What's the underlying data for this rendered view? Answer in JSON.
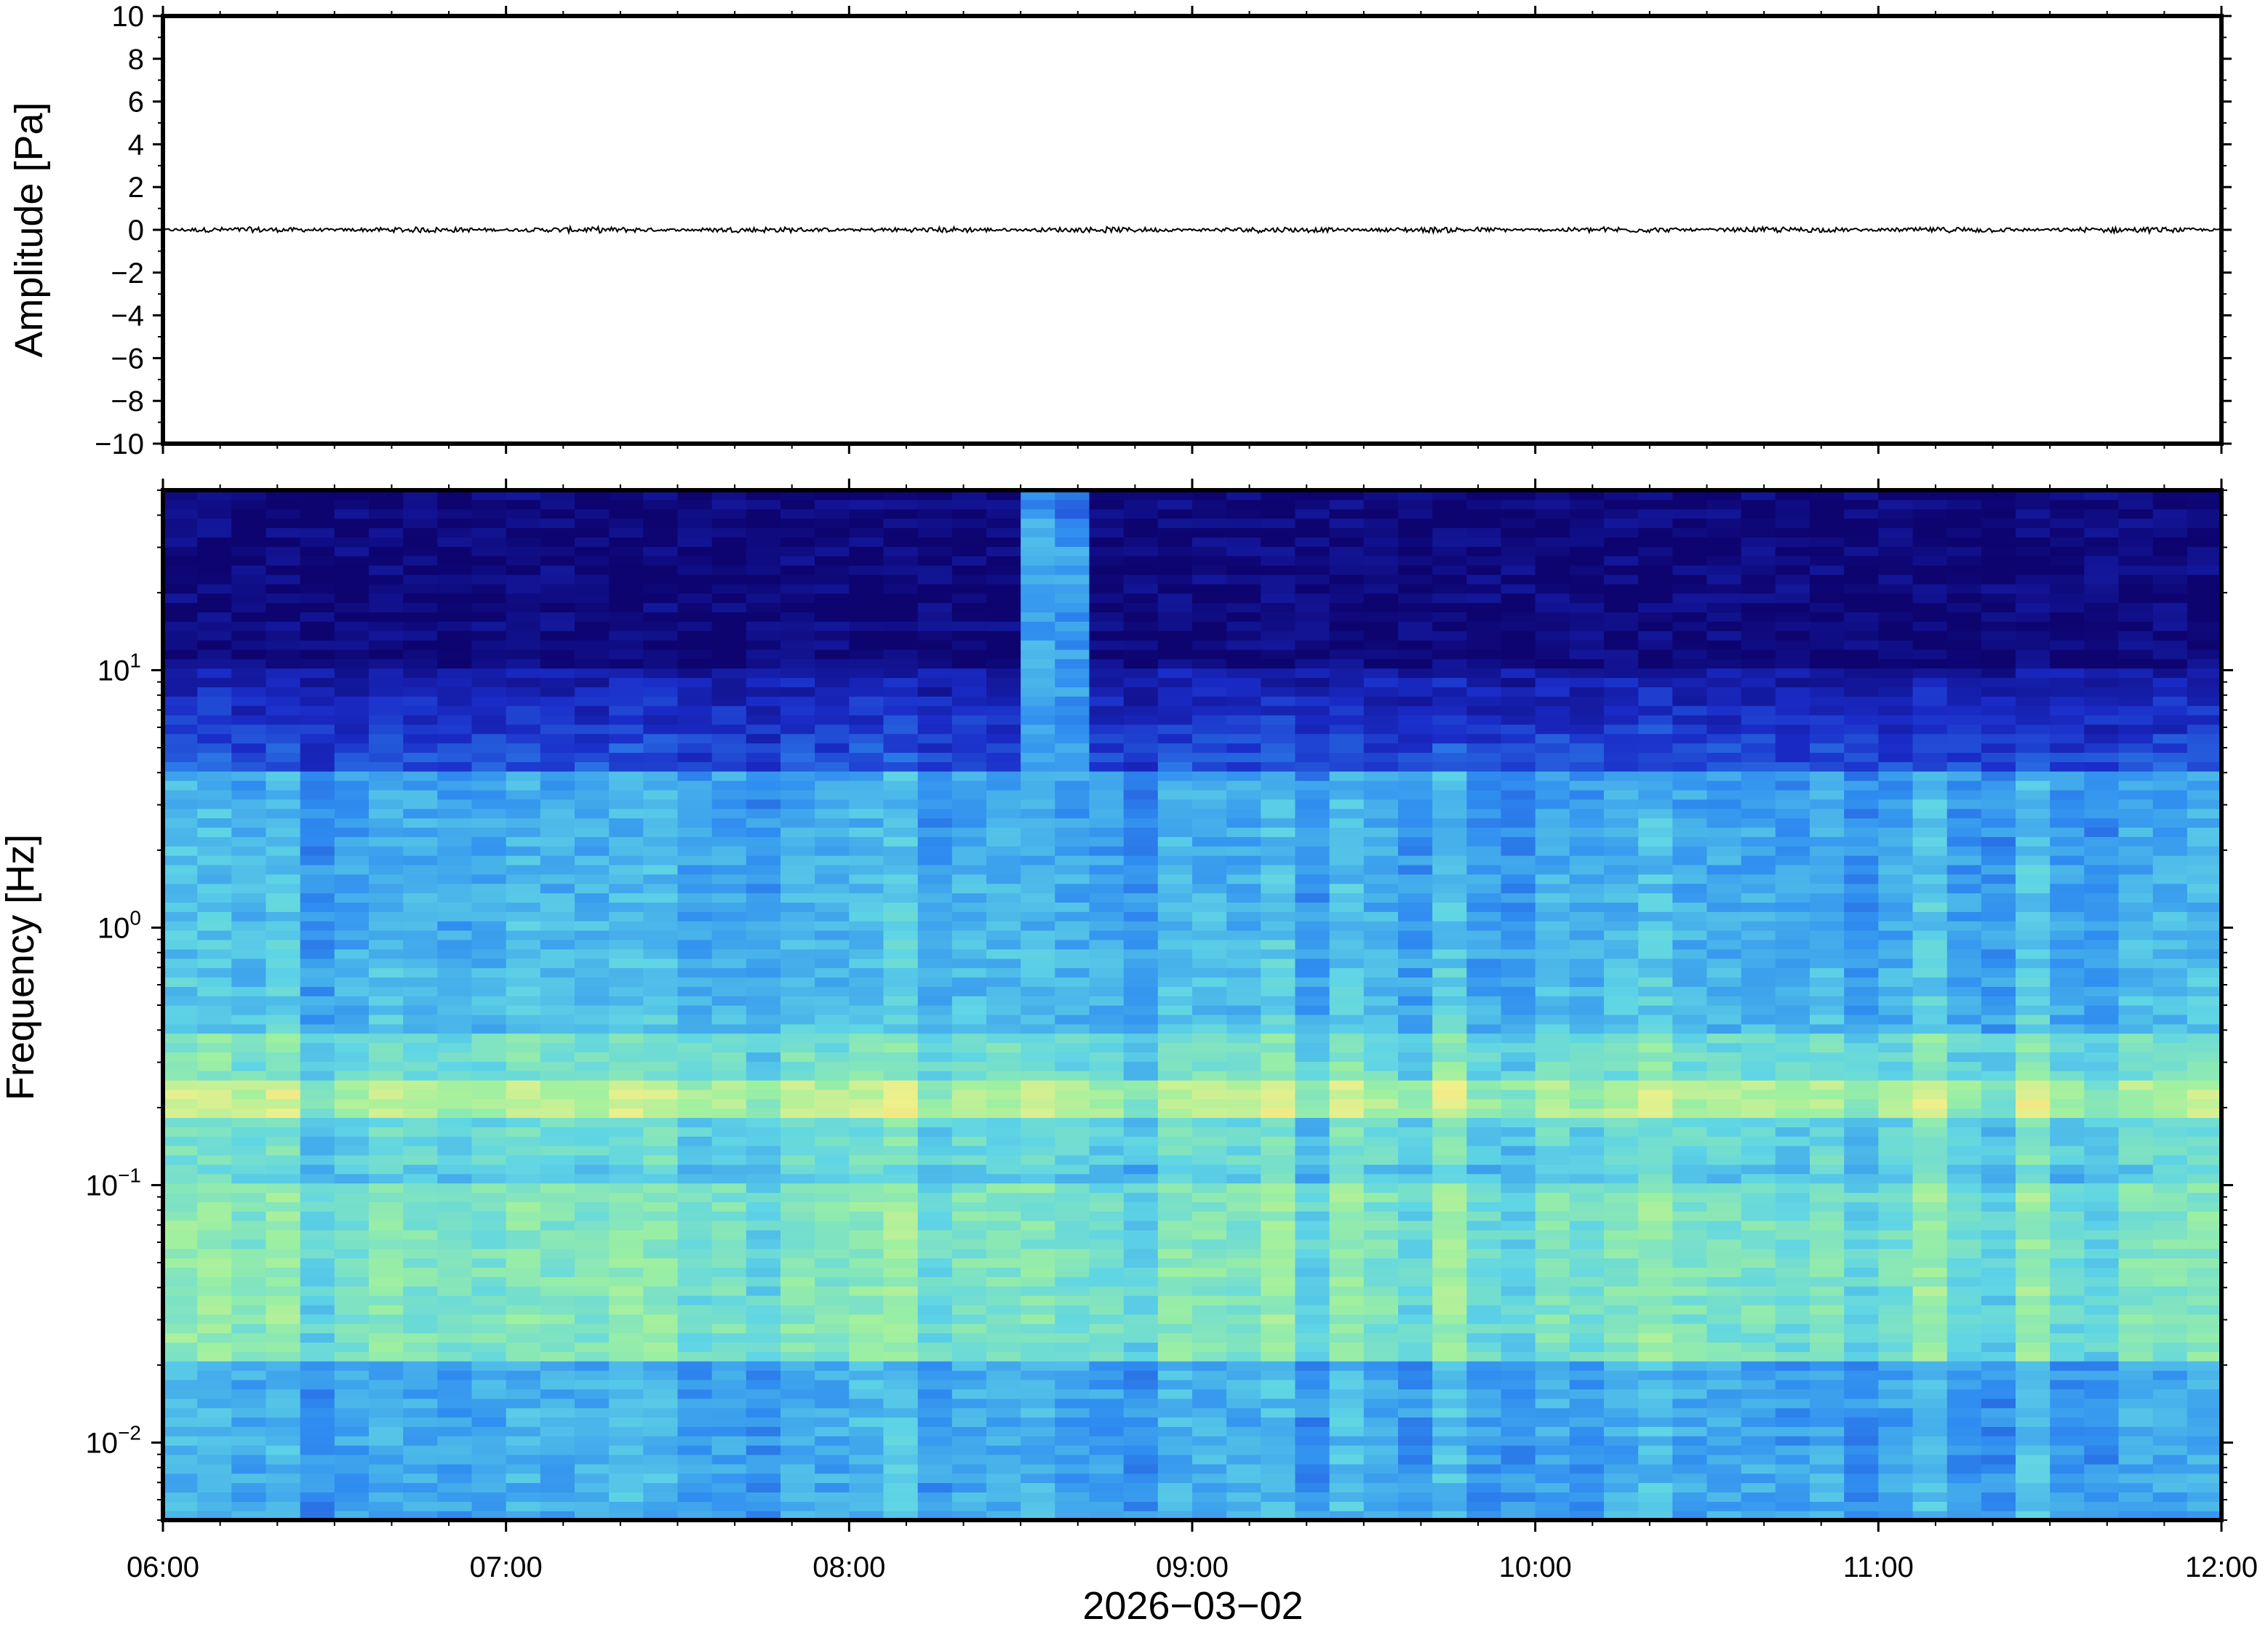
{
  "chart_data": [
    {
      "type": "line",
      "panel": "waveform",
      "ylabel": "Amplitude [Pa]",
      "ylim": [
        -10,
        10
      ],
      "yticks": [
        10,
        8,
        6,
        4,
        2,
        0,
        -2,
        -4,
        -6,
        -8,
        -10
      ],
      "ytick_labels": [
        "10",
        "8",
        "6",
        "4",
        "2",
        "0",
        "−2",
        "−4",
        "−6",
        "−8",
        "−10"
      ],
      "xlim": [
        "06:00",
        "12:00"
      ],
      "series": [
        {
          "description_free_values": true,
          "trace_color": "#000000",
          "baseline": 0,
          "peak_abs_amplitude": 0.15
        }
      ]
    },
    {
      "type": "heatmap",
      "panel": "spectrogram",
      "ylabel": "Frequency [Hz]",
      "yscale": "log",
      "ylim": [
        0.005,
        50
      ],
      "yticks": [
        10,
        1,
        0.1,
        0.01
      ],
      "ytick_labels": [
        {
          "base": "10",
          "exp": "1"
        },
        {
          "base": "10",
          "exp": "0"
        },
        {
          "base": "10",
          "exp": "−1"
        },
        {
          "base": "10",
          "exp": "−2"
        }
      ],
      "xlabel": "2026−03−02",
      "xlim": [
        "06:00",
        "12:00"
      ],
      "xticks": [
        "06:00",
        "07:00",
        "08:00",
        "09:00",
        "10:00",
        "11:00",
        "12:00"
      ],
      "colormap": [
        "#0d0470",
        "#1a2cc8",
        "#2f8cf0",
        "#5fd5e5",
        "#9ef0a0",
        "#f0f08a",
        "#f7a860"
      ],
      "time_columns": 60,
      "high_frequency_burst": {
        "start": "08:30",
        "end": "08:45"
      },
      "microseism_band_hz": [
        0.18,
        0.25
      ]
    }
  ]
}
